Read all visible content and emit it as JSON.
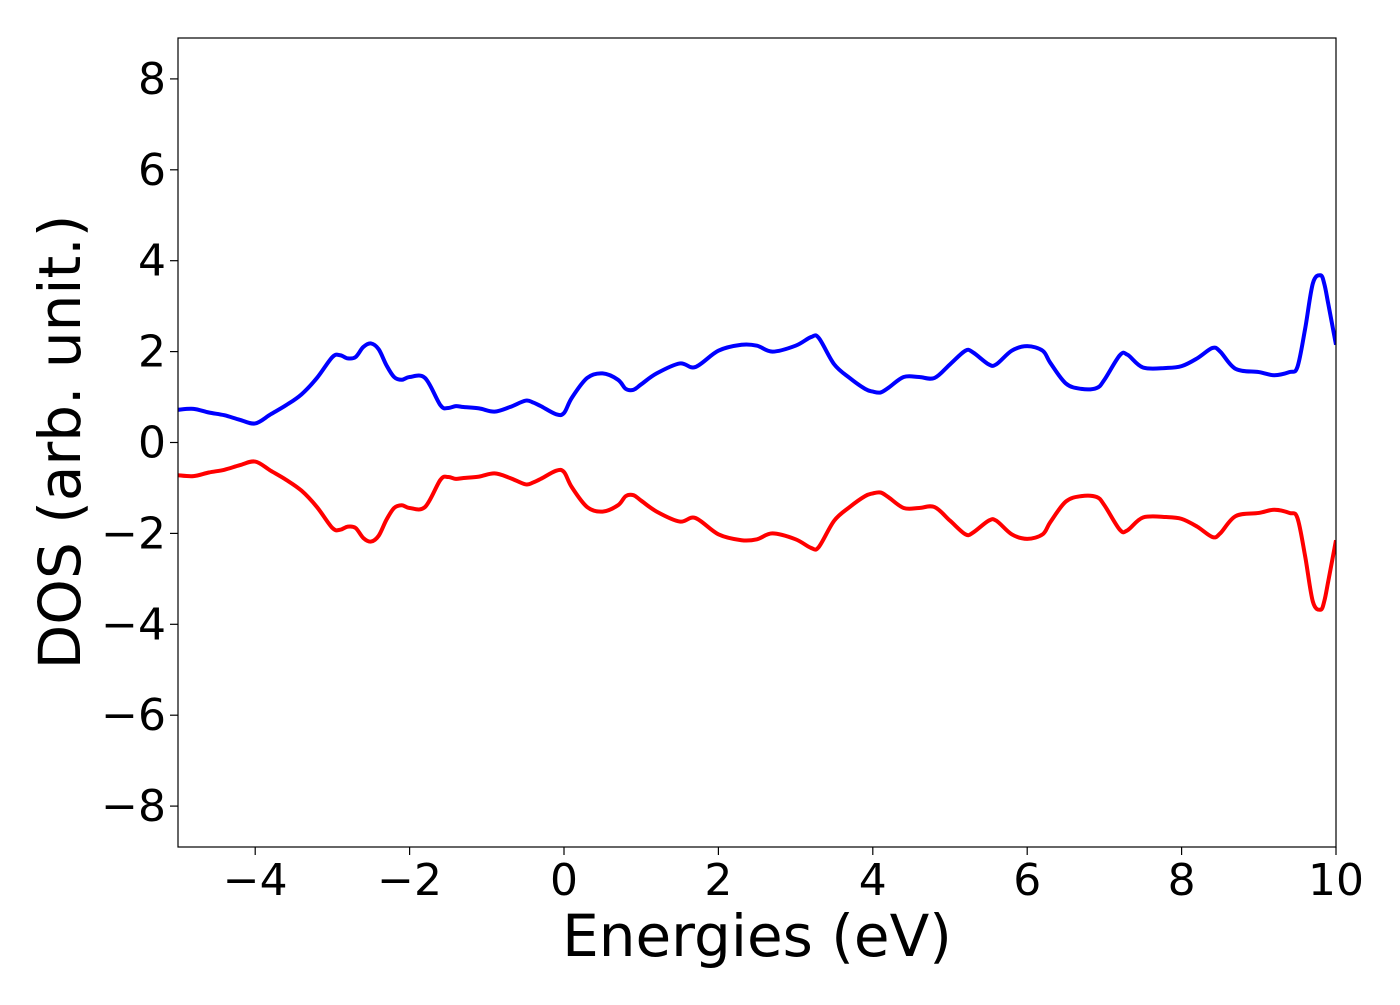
{
  "chart_data": {
    "type": "line",
    "title": "",
    "xlabel": "Energies (eV)",
    "ylabel": "DOS (arb. unit.)",
    "xlim": [
      -5,
      10
    ],
    "ylim": [
      -8.9,
      8.9
    ],
    "xticks": [
      -4,
      -2,
      0,
      2,
      4,
      6,
      8,
      10
    ],
    "xtick_labels": [
      "−4",
      "−2",
      "0",
      "2",
      "4",
      "6",
      "8",
      "10"
    ],
    "yticks": [
      8,
      6,
      4,
      2,
      0,
      -2,
      -4,
      -6,
      -8
    ],
    "ytick_labels": [
      "8",
      "6",
      "4",
      "2",
      "0",
      "−2",
      "−4",
      "−6",
      "−8"
    ],
    "grid": false,
    "legend": "none",
    "x": [
      -5.0,
      -4.8,
      -4.6,
      -4.4,
      -4.2,
      -4.0,
      -3.8,
      -3.6,
      -3.4,
      -3.2,
      -3.0,
      -2.9,
      -2.8,
      -2.7,
      -2.6,
      -2.5,
      -2.4,
      -2.3,
      -2.2,
      -2.1,
      -2.0,
      -1.8,
      -1.6,
      -1.5,
      -1.4,
      -1.3,
      -1.1,
      -0.9,
      -0.7,
      -0.5,
      -0.4,
      -0.3,
      -0.1,
      0.0,
      0.1,
      0.3,
      0.5,
      0.7,
      0.8,
      0.9,
      1.0,
      1.2,
      1.5,
      1.7,
      2.0,
      2.3,
      2.5,
      2.7,
      3.0,
      3.2,
      3.3,
      3.5,
      3.7,
      3.9,
      4.0,
      4.1,
      4.2,
      4.4,
      4.6,
      4.8,
      5.0,
      5.2,
      5.3,
      5.5,
      5.6,
      5.8,
      6.0,
      6.2,
      6.3,
      6.5,
      6.7,
      6.9,
      7.0,
      7.2,
      7.3,
      7.5,
      7.8,
      8.0,
      8.2,
      8.4,
      8.5,
      8.7,
      9.0,
      9.2,
      9.4,
      9.5,
      9.6,
      9.7,
      9.8,
      9.85,
      9.9,
      10.0
    ],
    "series": [
      {
        "color": "#0000ff",
        "values": [
          0.72,
          0.74,
          0.66,
          0.6,
          0.5,
          0.42,
          0.62,
          0.82,
          1.06,
          1.42,
          1.88,
          1.92,
          1.85,
          1.88,
          2.1,
          2.18,
          2.05,
          1.7,
          1.44,
          1.38,
          1.44,
          1.42,
          0.82,
          0.76,
          0.8,
          0.78,
          0.75,
          0.68,
          0.78,
          0.92,
          0.88,
          0.8,
          0.62,
          0.65,
          0.98,
          1.42,
          1.52,
          1.38,
          1.18,
          1.16,
          1.28,
          1.52,
          1.74,
          1.66,
          2.02,
          2.15,
          2.13,
          2.0,
          2.13,
          2.32,
          2.3,
          1.72,
          1.42,
          1.18,
          1.12,
          1.1,
          1.2,
          1.44,
          1.44,
          1.42,
          1.72,
          2.02,
          1.98,
          1.72,
          1.72,
          2.02,
          2.12,
          2.02,
          1.75,
          1.3,
          1.18,
          1.2,
          1.38,
          1.92,
          1.93,
          1.65,
          1.64,
          1.68,
          1.85,
          2.08,
          2.0,
          1.62,
          1.55,
          1.48,
          1.55,
          1.66,
          2.5,
          3.5,
          3.68,
          3.48,
          3.05,
          2.15
        ]
      },
      {
        "color": "#ff0000",
        "values": [
          -0.72,
          -0.74,
          -0.66,
          -0.6,
          -0.5,
          -0.42,
          -0.62,
          -0.82,
          -1.06,
          -1.42,
          -1.88,
          -1.92,
          -1.85,
          -1.88,
          -2.1,
          -2.18,
          -2.05,
          -1.7,
          -1.44,
          -1.38,
          -1.44,
          -1.42,
          -0.82,
          -0.76,
          -0.8,
          -0.78,
          -0.75,
          -0.68,
          -0.78,
          -0.92,
          -0.88,
          -0.8,
          -0.62,
          -0.65,
          -0.98,
          -1.42,
          -1.52,
          -1.38,
          -1.18,
          -1.16,
          -1.28,
          -1.52,
          -1.74,
          -1.66,
          -2.02,
          -2.15,
          -2.13,
          -2.0,
          -2.13,
          -2.32,
          -2.3,
          -1.72,
          -1.42,
          -1.18,
          -1.12,
          -1.1,
          -1.2,
          -1.44,
          -1.44,
          -1.42,
          -1.72,
          -2.02,
          -1.98,
          -1.72,
          -1.72,
          -2.02,
          -2.12,
          -2.02,
          -1.75,
          -1.3,
          -1.18,
          -1.2,
          -1.38,
          -1.92,
          -1.93,
          -1.65,
          -1.64,
          -1.68,
          -1.85,
          -2.08,
          -2.0,
          -1.62,
          -1.55,
          -1.48,
          -1.55,
          -1.66,
          -2.5,
          -3.5,
          -3.68,
          -3.48,
          -3.05,
          -2.15
        ]
      }
    ]
  }
}
